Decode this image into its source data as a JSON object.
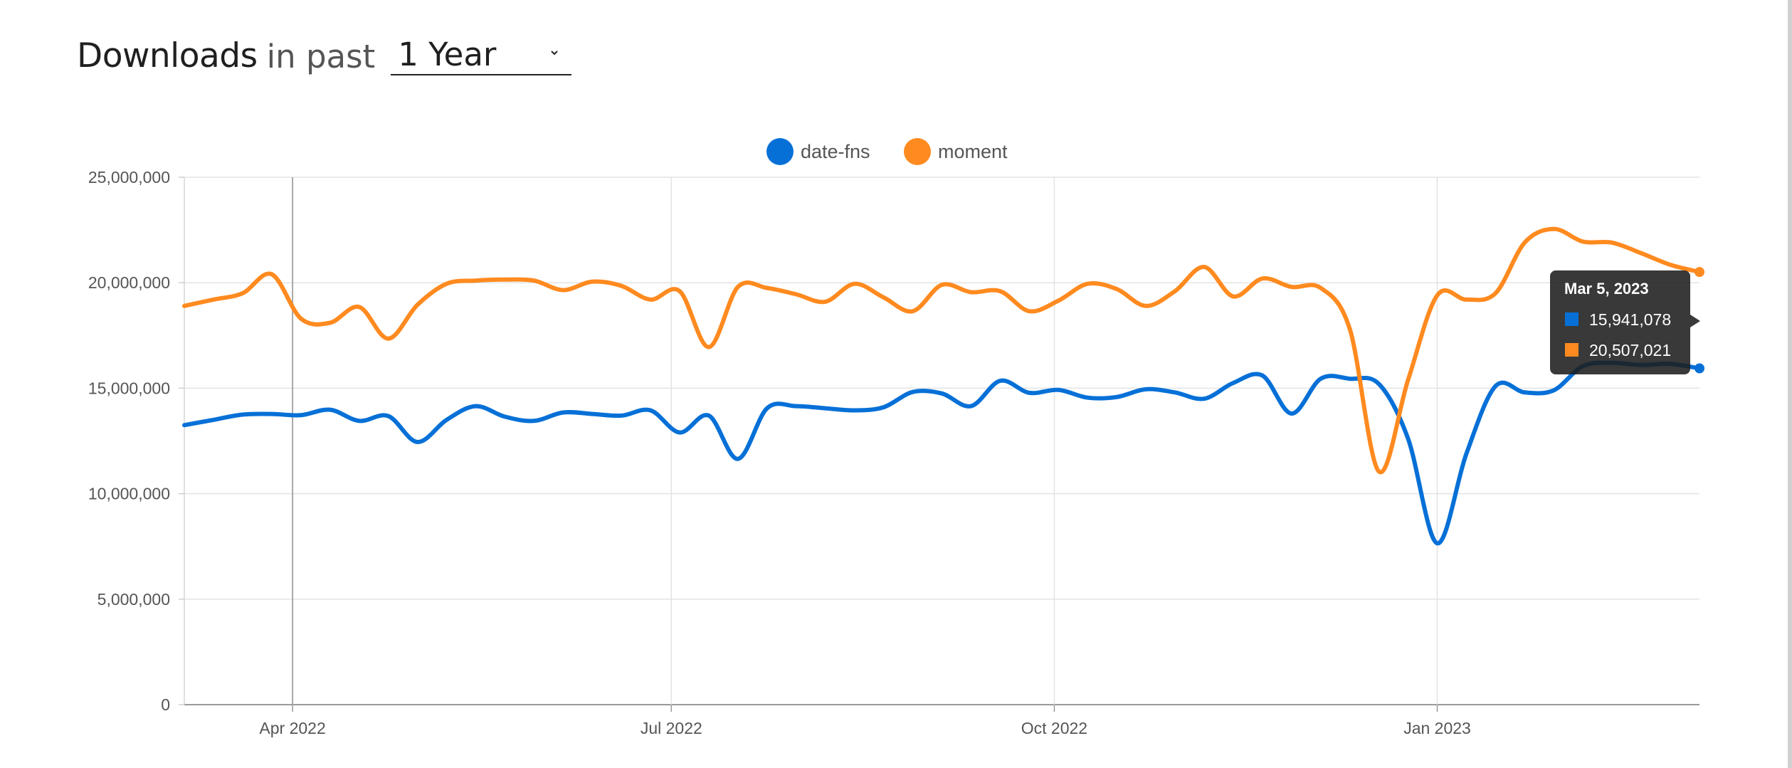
{
  "header": {
    "title": "Downloads",
    "subtitle": "in past",
    "range_value": "1 Year"
  },
  "tooltip": {
    "date": "Mar 5, 2023",
    "rows": [
      {
        "series": "date-fns",
        "value": "15,941,078",
        "color": "#0670d7"
      },
      {
        "series": "moment",
        "value": "20,507,021",
        "color": "#ff8a1f"
      }
    ]
  },
  "chart_data": {
    "type": "line",
    "ylim": [
      0,
      25000000
    ],
    "y_ticks": [
      0,
      5000000,
      10000000,
      15000000,
      20000000,
      25000000
    ],
    "y_tick_labels": [
      "0",
      "5,000,000",
      "10,000,000",
      "15,000,000",
      "20,000,000",
      "25,000,000"
    ],
    "xlim": [
      "2022-03-06",
      "2023-03-05"
    ],
    "x_ticks": [
      {
        "date": "2022-04-01",
        "label": "Apr 2022"
      },
      {
        "date": "2022-07-01",
        "label": "Jul 2022"
      },
      {
        "date": "2022-10-01",
        "label": "Oct 2022"
      },
      {
        "date": "2023-01-01",
        "label": "Jan 2023"
      }
    ],
    "grid": true,
    "legend": "top-center",
    "crosshair_date": "2022-04-01",
    "series": [
      {
        "name": "date-fns",
        "color": "#0670d7",
        "points": [
          [
            "2022-03-06",
            13250000
          ],
          [
            "2022-03-13",
            13500000
          ],
          [
            "2022-03-20",
            13750000
          ],
          [
            "2022-03-27",
            13780000
          ],
          [
            "2022-04-03",
            13720000
          ],
          [
            "2022-04-10",
            13980000
          ],
          [
            "2022-04-17",
            13450000
          ],
          [
            "2022-04-24",
            13680000
          ],
          [
            "2022-05-01",
            12450000
          ],
          [
            "2022-05-08",
            13500000
          ],
          [
            "2022-05-15",
            14150000
          ],
          [
            "2022-05-22",
            13650000
          ],
          [
            "2022-05-29",
            13450000
          ],
          [
            "2022-06-05",
            13850000
          ],
          [
            "2022-06-12",
            13780000
          ],
          [
            "2022-06-19",
            13700000
          ],
          [
            "2022-06-26",
            13950000
          ],
          [
            "2022-07-03",
            12900000
          ],
          [
            "2022-07-10",
            13700000
          ],
          [
            "2022-07-17",
            11650000
          ],
          [
            "2022-07-24",
            14050000
          ],
          [
            "2022-07-31",
            14150000
          ],
          [
            "2022-08-07",
            14050000
          ],
          [
            "2022-08-14",
            13950000
          ],
          [
            "2022-08-21",
            14100000
          ],
          [
            "2022-08-28",
            14820000
          ],
          [
            "2022-09-04",
            14750000
          ],
          [
            "2022-09-11",
            14150000
          ],
          [
            "2022-09-18",
            15350000
          ],
          [
            "2022-09-25",
            14780000
          ],
          [
            "2022-10-02",
            14920000
          ],
          [
            "2022-10-09",
            14550000
          ],
          [
            "2022-10-16",
            14580000
          ],
          [
            "2022-10-23",
            14950000
          ],
          [
            "2022-10-30",
            14800000
          ],
          [
            "2022-11-06",
            14500000
          ],
          [
            "2022-11-13",
            15250000
          ],
          [
            "2022-11-20",
            15600000
          ],
          [
            "2022-11-27",
            13800000
          ],
          [
            "2022-12-04",
            15450000
          ],
          [
            "2022-12-11",
            15450000
          ],
          [
            "2022-12-18",
            15200000
          ],
          [
            "2022-12-25",
            12600000
          ],
          [
            "2023-01-01",
            7650000
          ],
          [
            "2023-01-08",
            11900000
          ],
          [
            "2023-01-15",
            15100000
          ],
          [
            "2023-01-22",
            14800000
          ],
          [
            "2023-01-29",
            14900000
          ],
          [
            "2023-02-05",
            16050000
          ],
          [
            "2023-02-12",
            16200000
          ],
          [
            "2023-02-19",
            16100000
          ],
          [
            "2023-02-26",
            16150000
          ],
          [
            "2023-03-05",
            15941078
          ]
        ]
      },
      {
        "name": "moment",
        "color": "#ff8a1f",
        "points": [
          [
            "2022-03-06",
            18900000
          ],
          [
            "2022-03-13",
            19200000
          ],
          [
            "2022-03-20",
            19500000
          ],
          [
            "2022-03-27",
            20400000
          ],
          [
            "2022-04-03",
            18300000
          ],
          [
            "2022-04-10",
            18100000
          ],
          [
            "2022-04-17",
            18850000
          ],
          [
            "2022-04-24",
            17350000
          ],
          [
            "2022-05-01",
            18950000
          ],
          [
            "2022-05-08",
            19950000
          ],
          [
            "2022-05-15",
            20100000
          ],
          [
            "2022-05-22",
            20150000
          ],
          [
            "2022-05-29",
            20100000
          ],
          [
            "2022-06-05",
            19650000
          ],
          [
            "2022-06-12",
            20050000
          ],
          [
            "2022-06-19",
            19850000
          ],
          [
            "2022-06-26",
            19200000
          ],
          [
            "2022-07-03",
            19600000
          ],
          [
            "2022-07-10",
            16950000
          ],
          [
            "2022-07-17",
            19800000
          ],
          [
            "2022-07-24",
            19750000
          ],
          [
            "2022-07-31",
            19450000
          ],
          [
            "2022-08-07",
            19100000
          ],
          [
            "2022-08-14",
            19950000
          ],
          [
            "2022-08-21",
            19300000
          ],
          [
            "2022-08-28",
            18650000
          ],
          [
            "2022-09-04",
            19900000
          ],
          [
            "2022-09-11",
            19550000
          ],
          [
            "2022-09-18",
            19600000
          ],
          [
            "2022-09-25",
            18650000
          ],
          [
            "2022-10-02",
            19150000
          ],
          [
            "2022-10-09",
            19950000
          ],
          [
            "2022-10-16",
            19700000
          ],
          [
            "2022-10-23",
            18900000
          ],
          [
            "2022-10-30",
            19600000
          ],
          [
            "2022-11-06",
            20750000
          ],
          [
            "2022-11-13",
            19350000
          ],
          [
            "2022-11-20",
            20200000
          ],
          [
            "2022-11-27",
            19800000
          ],
          [
            "2022-12-04",
            19750000
          ],
          [
            "2022-12-11",
            17800000
          ],
          [
            "2022-12-18",
            11050000
          ],
          [
            "2022-12-25",
            15400000
          ],
          [
            "2023-01-01",
            19400000
          ],
          [
            "2023-01-08",
            19200000
          ],
          [
            "2023-01-15",
            19500000
          ],
          [
            "2023-01-22",
            21900000
          ],
          [
            "2023-01-29",
            22550000
          ],
          [
            "2023-02-05",
            21950000
          ],
          [
            "2023-02-12",
            21900000
          ],
          [
            "2023-02-19",
            21400000
          ],
          [
            "2023-02-26",
            20850000
          ],
          [
            "2023-03-05",
            20507021
          ]
        ]
      }
    ]
  }
}
